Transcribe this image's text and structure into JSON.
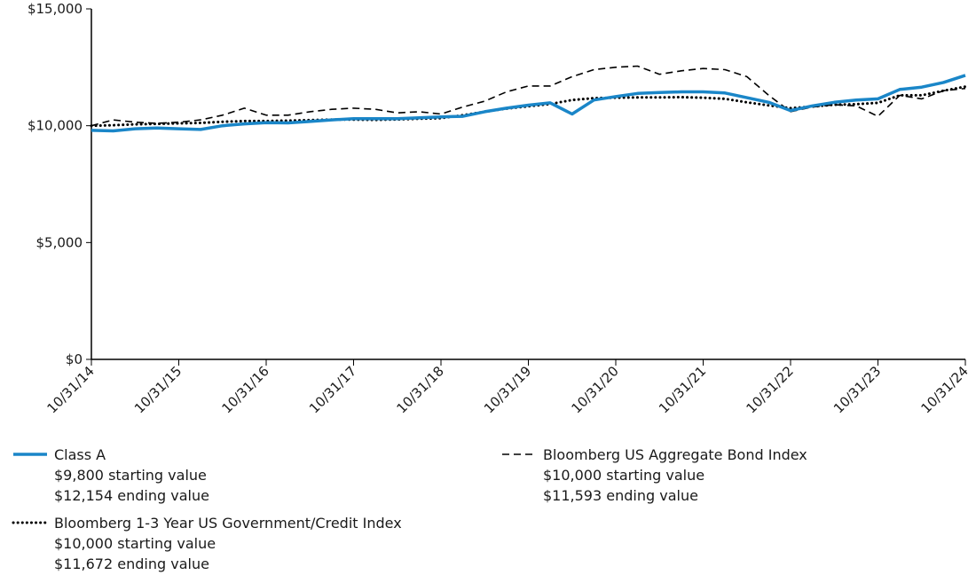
{
  "chart_data": {
    "type": "line",
    "categories": [
      "10/31/14",
      null,
      null,
      null,
      "10/31/15",
      null,
      null,
      null,
      "10/31/16",
      null,
      null,
      null,
      "10/31/17",
      null,
      null,
      null,
      "10/31/18",
      null,
      null,
      null,
      "10/31/19",
      null,
      null,
      null,
      "10/31/20",
      null,
      null,
      null,
      "10/31/21",
      null,
      null,
      null,
      "10/31/22",
      null,
      null,
      null,
      "10/31/23",
      null,
      null,
      null,
      "10/31/24"
    ],
    "ylim": [
      0,
      15000
    ],
    "yticks": [
      {
        "value": 0,
        "label": "$0"
      },
      {
        "value": 5000,
        "label": "$5,000"
      },
      {
        "value": 10000,
        "label": "$10,000"
      },
      {
        "value": 15000,
        "label": "$15,000"
      }
    ],
    "series": [
      {
        "name": "Class A",
        "color": "#1a86c8",
        "style": "solid",
        "starting": "$9,800 starting value",
        "ending": "$12,154 ending value",
        "values": [
          9800,
          9780,
          9870,
          9900,
          9870,
          9840,
          10000,
          10080,
          10130,
          10120,
          10180,
          10250,
          10300,
          10300,
          10300,
          10340,
          10380,
          10400,
          10600,
          10750,
          10880,
          10980,
          10500,
          11100,
          11250,
          11380,
          11420,
          11450,
          11450,
          11400,
          11200,
          11000,
          10650,
          10850,
          11000,
          11100,
          11150,
          11550,
          11650,
          11850,
          12154
        ]
      },
      {
        "name": "Bloomberg US Aggregate Bond Index",
        "color": "#000000",
        "style": "dashed",
        "starting": "$10,000 starting value",
        "ending": "$11,593 ending value",
        "values": [
          10000,
          10250,
          10150,
          10100,
          10150,
          10250,
          10450,
          10750,
          10450,
          10450,
          10600,
          10700,
          10750,
          10700,
          10550,
          10600,
          10500,
          10800,
          11050,
          11450,
          11700,
          11700,
          12100,
          12400,
          12500,
          12550,
          12200,
          12350,
          12450,
          12400,
          12100,
          11300,
          10600,
          10800,
          10900,
          10850,
          10400,
          11300,
          11150,
          11500,
          11593
        ]
      },
      {
        "name": "Bloomberg 1-3 Year US Government/Credit Index",
        "color": "#000000",
        "style": "dotted",
        "starting": "$10,000 starting value",
        "ending": "$11,672 ending value",
        "values": [
          10000,
          10020,
          10060,
          10080,
          10100,
          10120,
          10170,
          10200,
          10200,
          10220,
          10240,
          10260,
          10260,
          10250,
          10270,
          10300,
          10320,
          10450,
          10600,
          10730,
          10830,
          10930,
          11100,
          11180,
          11200,
          11210,
          11210,
          11220,
          11200,
          11150,
          11000,
          10870,
          10750,
          10820,
          10900,
          10920,
          10980,
          11300,
          11300,
          11500,
          11672
        ]
      }
    ]
  }
}
